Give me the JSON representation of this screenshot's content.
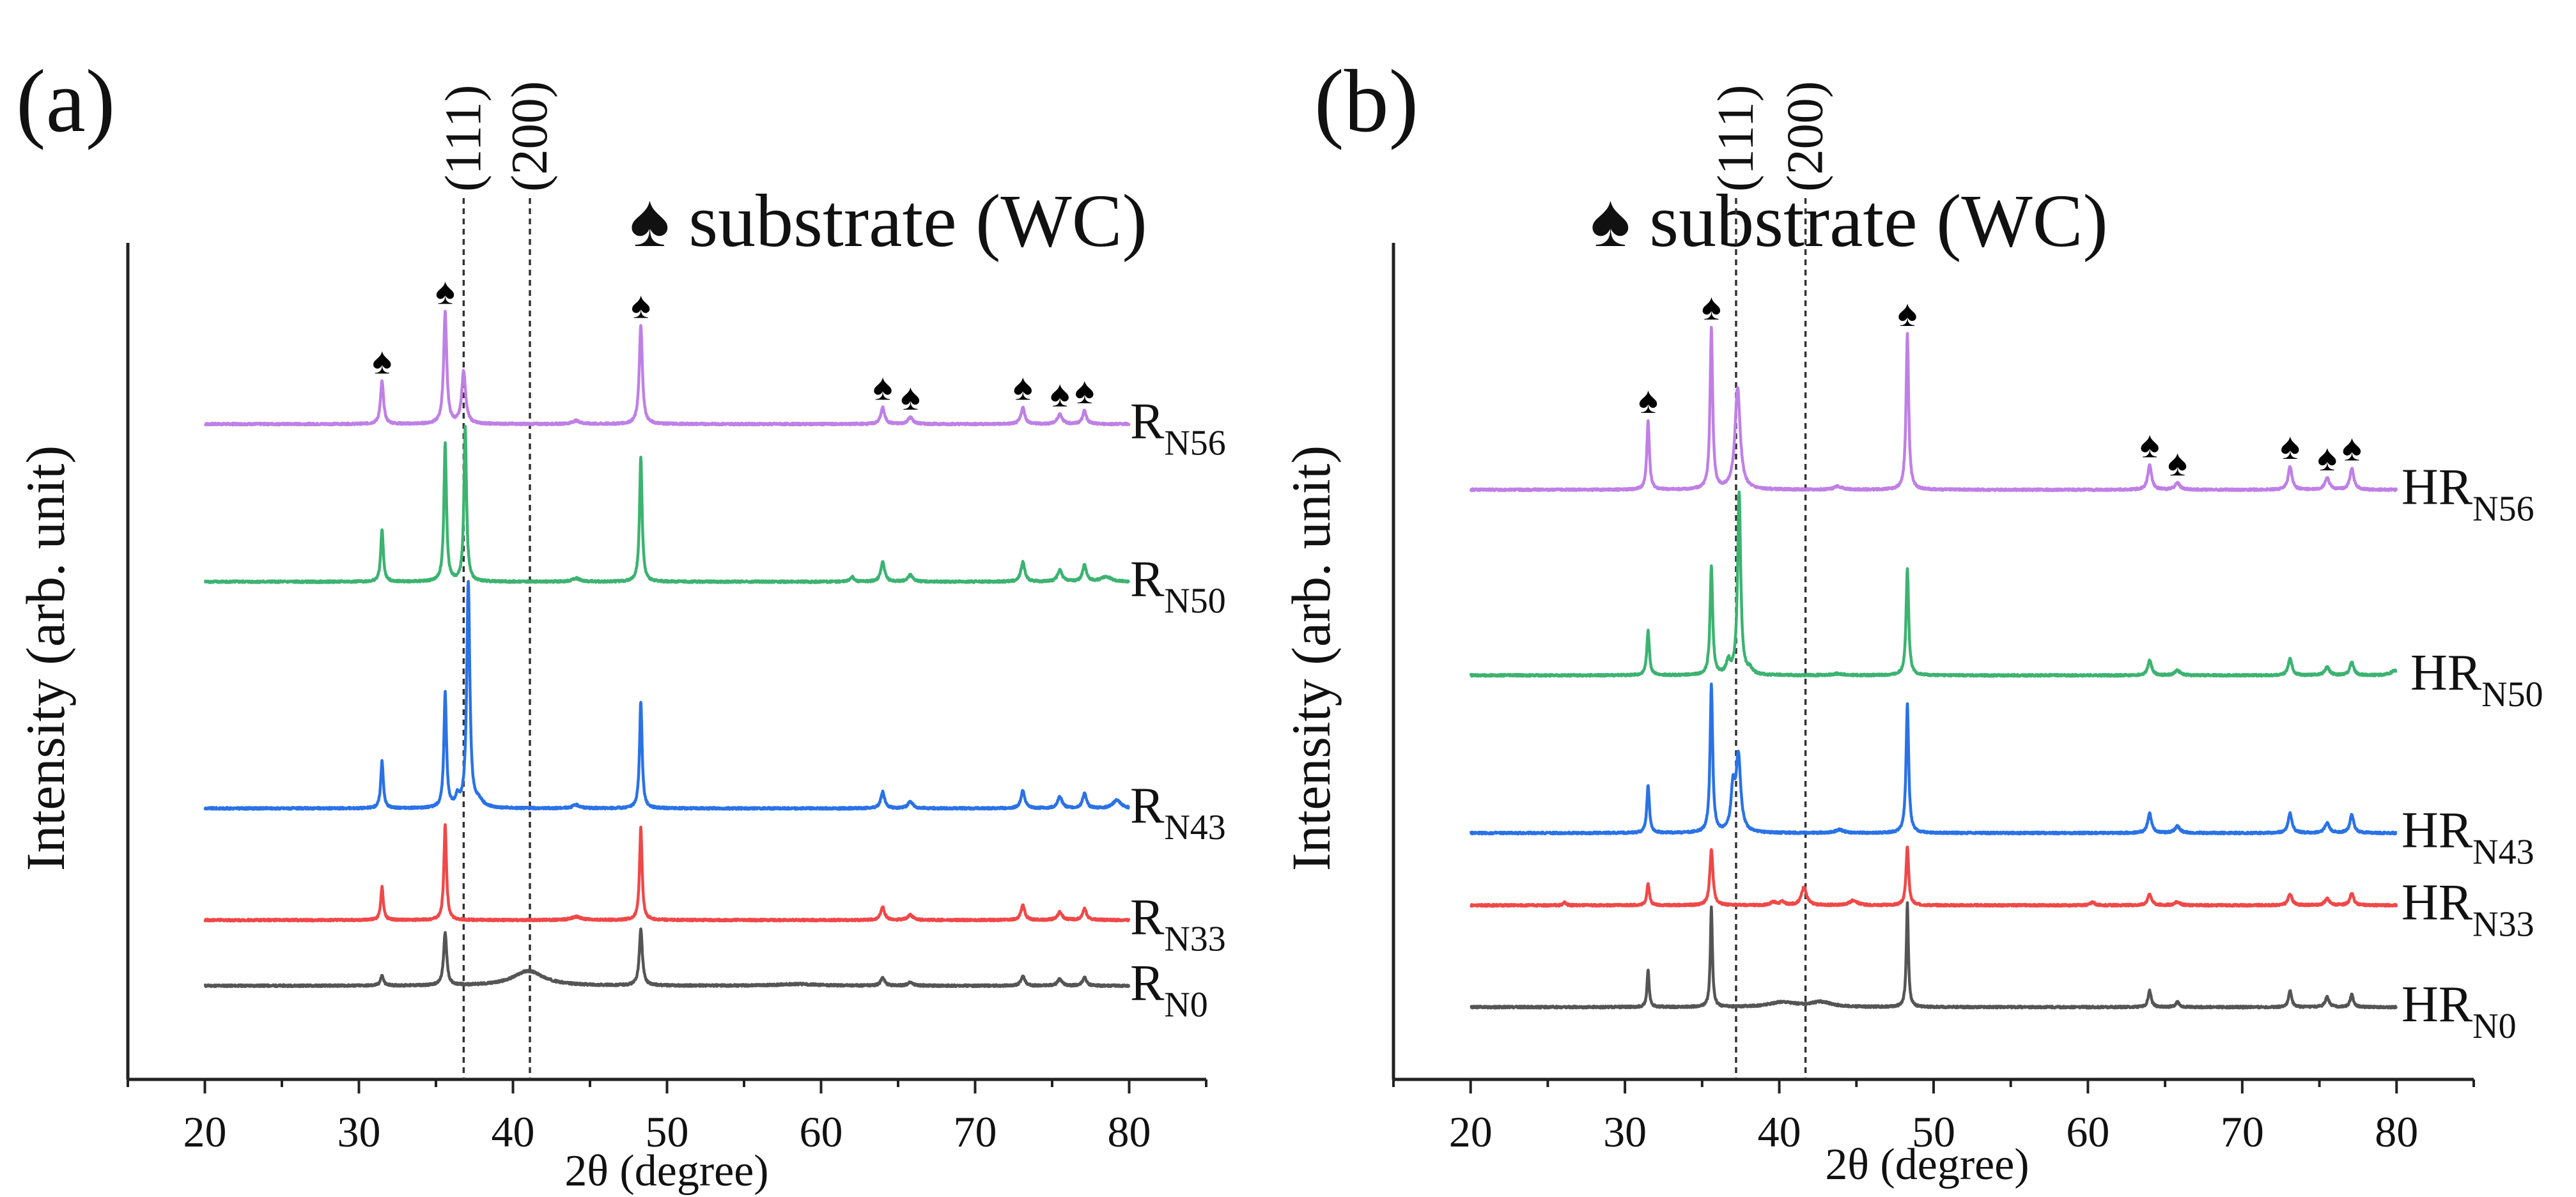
{
  "chart_data": [
    {
      "type": "line",
      "panel_label": "(a)",
      "legend": {
        "symbol": "♠",
        "text": "substrate (WC)"
      },
      "xlabel": "2θ (degree)",
      "ylabel": "Intensity (arb. unit)",
      "xlim": [
        15,
        85
      ],
      "xticks": [
        20,
        30,
        40,
        50,
        60,
        70,
        80
      ],
      "grid": false,
      "reference_lines": [
        {
          "x": 36.8,
          "label": "(111)"
        },
        {
          "x": 41.1,
          "label": "(200)"
        }
      ],
      "substrate_markers": [
        31.5,
        35.6,
        48.3,
        64.0,
        65.8,
        73.1,
        75.5,
        77.1
      ],
      "series": [
        {
          "name": "R",
          "sub": "N56",
          "color": "#bf80e6",
          "offset": 399,
          "peaks": [
            [
              31.5,
              26,
              0.12
            ],
            [
              35.6,
              68,
              0.12
            ],
            [
              36.8,
              32,
              0.15
            ],
            [
              48.3,
              60,
              0.12
            ],
            [
              44.1,
              2,
              0.3
            ],
            [
              64.0,
              10,
              0.15
            ],
            [
              65.8,
              4,
              0.2
            ],
            [
              73.1,
              10,
              0.15
            ],
            [
              75.5,
              6,
              0.18
            ],
            [
              77.1,
              8,
              0.15
            ]
          ]
        },
        {
          "name": "R",
          "sub": "N50",
          "color": "#3cb371",
          "offset": 303,
          "peaks": [
            [
              31.5,
              32,
              0.1
            ],
            [
              35.6,
              84,
              0.1
            ],
            [
              36.9,
              94,
              0.1
            ],
            [
              48.3,
              76,
              0.1
            ],
            [
              44.1,
              2,
              0.3
            ],
            [
              62.0,
              3,
              0.15
            ],
            [
              64.0,
              12,
              0.15
            ],
            [
              65.8,
              4,
              0.2
            ],
            [
              73.1,
              12,
              0.15
            ],
            [
              75.5,
              7,
              0.18
            ],
            [
              77.1,
              10,
              0.15
            ],
            [
              78.5,
              3,
              0.4
            ]
          ]
        },
        {
          "name": "R",
          "sub": "N43",
          "color": "#2a72e6",
          "offset": 165,
          "peaks": [
            [
              31.5,
              29,
              0.1
            ],
            [
              35.6,
              70,
              0.1
            ],
            [
              36.4,
              6,
              0.15
            ],
            [
              37.1,
              137,
              0.12
            ],
            [
              37.8,
              4,
              0.3
            ],
            [
              48.3,
              65,
              0.1
            ],
            [
              44.1,
              2,
              0.3
            ],
            [
              64.0,
              10,
              0.15
            ],
            [
              65.8,
              4,
              0.2
            ],
            [
              73.1,
              11,
              0.15
            ],
            [
              75.5,
              7,
              0.18
            ],
            [
              77.1,
              9,
              0.15
            ],
            [
              79.2,
              5,
              0.3
            ]
          ]
        },
        {
          "name": "R",
          "sub": "N33",
          "color": "#f04848",
          "offset": 97,
          "peaks": [
            [
              31.5,
              20,
              0.1
            ],
            [
              35.6,
              58,
              0.1
            ],
            [
              44.1,
              2,
              0.4
            ],
            [
              48.3,
              56,
              0.1
            ],
            [
              64.0,
              8,
              0.15
            ],
            [
              65.8,
              3,
              0.2
            ],
            [
              73.1,
              9,
              0.15
            ],
            [
              75.5,
              5,
              0.18
            ],
            [
              77.1,
              7,
              0.15
            ]
          ]
        },
        {
          "name": "R",
          "sub": "N0",
          "color": "#555555",
          "offset": 57,
          "peaks": [
            [
              31.5,
              6,
              0.12
            ],
            [
              35.6,
              32,
              0.12
            ],
            [
              41.0,
              9,
              1.2
            ],
            [
              48.3,
              34,
              0.12
            ],
            [
              58.5,
              1,
              1.5
            ],
            [
              64.0,
              5,
              0.15
            ],
            [
              65.8,
              2,
              0.2
            ],
            [
              73.1,
              6,
              0.15
            ],
            [
              75.5,
              4,
              0.18
            ],
            [
              77.1,
              5,
              0.15
            ]
          ]
        }
      ]
    },
    {
      "type": "line",
      "panel_label": "(b)",
      "legend": {
        "symbol": "♠",
        "text": "substrate (WC)"
      },
      "xlabel": "2θ (degree)",
      "ylabel": "Intensity (arb. unit)",
      "xlim": [
        15,
        85
      ],
      "xticks": [
        20,
        30,
        40,
        50,
        60,
        70,
        80
      ],
      "grid": false,
      "reference_lines": [
        {
          "x": 37.2,
          "label": "(111)"
        },
        {
          "x": 41.7,
          "label": "(200)"
        }
      ],
      "substrate_markers": [
        31.5,
        35.6,
        48.3,
        64.0,
        65.8,
        73.1,
        75.5,
        77.1
      ],
      "series": [
        {
          "name": "HR",
          "sub": "N56",
          "color": "#bf80e6",
          "offset": 359,
          "peaks": [
            [
              31.5,
              42,
              0.1
            ],
            [
              35.6,
              98,
              0.1
            ],
            [
              37.3,
              62,
              0.2
            ],
            [
              48.3,
              95,
              0.1
            ],
            [
              43.8,
              2,
              0.3
            ],
            [
              64.0,
              15,
              0.15
            ],
            [
              65.8,
              4,
              0.2
            ],
            [
              73.1,
              14,
              0.15
            ],
            [
              75.5,
              7,
              0.18
            ],
            [
              77.1,
              13,
              0.15
            ]
          ]
        },
        {
          "name": "HR",
          "sub": "N50",
          "color": "#3cb371",
          "offset": 246,
          "peaks": [
            [
              31.5,
              27,
              0.1
            ],
            [
              35.6,
              66,
              0.1
            ],
            [
              36.7,
              8,
              0.15
            ],
            [
              37.4,
              111,
              0.12
            ],
            [
              38.1,
              3,
              0.2
            ],
            [
              48.3,
              65,
              0.1
            ],
            [
              43.8,
              1,
              0.4
            ],
            [
              64.0,
              9,
              0.15
            ],
            [
              65.8,
              3,
              0.2
            ],
            [
              73.1,
              10,
              0.15
            ],
            [
              75.5,
              5,
              0.18
            ],
            [
              77.1,
              8,
              0.15
            ],
            [
              79.9,
              3,
              0.3
            ]
          ]
        },
        {
          "name": "HR",
          "sub": "N43",
          "color": "#2a72e6",
          "offset": 150,
          "peaks": [
            [
              31.5,
              29,
              0.1
            ],
            [
              35.6,
              90,
              0.1
            ],
            [
              37.0,
              25,
              0.15
            ],
            [
              37.35,
              46,
              0.18
            ],
            [
              48.3,
              79,
              0.1
            ],
            [
              43.9,
              2,
              0.3
            ],
            [
              64.0,
              12,
              0.15
            ],
            [
              65.8,
              4,
              0.2
            ],
            [
              73.1,
              12,
              0.15
            ],
            [
              75.5,
              6,
              0.18
            ],
            [
              77.1,
              11,
              0.15
            ]
          ]
        },
        {
          "name": "HR",
          "sub": "N33",
          "color": "#f04848",
          "offset": 106,
          "peaks": [
            [
              26.1,
              2,
              0.1
            ],
            [
              31.5,
              13,
              0.1
            ],
            [
              35.6,
              34,
              0.12
            ],
            [
              39.6,
              2,
              0.2
            ],
            [
              40.2,
              2,
              0.2
            ],
            [
              41.6,
              11,
              0.2
            ],
            [
              44.8,
              3,
              0.3
            ],
            [
              48.3,
              36,
              0.1
            ],
            [
              60.3,
              2,
              0.15
            ],
            [
              64.0,
              7,
              0.15
            ],
            [
              65.8,
              2,
              0.2
            ],
            [
              73.1,
              7,
              0.15
            ],
            [
              75.5,
              4,
              0.18
            ],
            [
              77.1,
              7,
              0.15
            ]
          ]
        },
        {
          "name": "HR",
          "sub": "N0",
          "color": "#555555",
          "offset": 44,
          "peaks": [
            [
              31.5,
              23,
              0.08
            ],
            [
              35.6,
              61,
              0.08
            ],
            [
              40.2,
              3,
              1.0
            ],
            [
              42.7,
              3,
              0.8
            ],
            [
              48.3,
              63,
              0.08
            ],
            [
              64.0,
              10,
              0.12
            ],
            [
              65.8,
              3,
              0.15
            ],
            [
              73.1,
              10,
              0.12
            ],
            [
              75.5,
              6,
              0.15
            ],
            [
              77.1,
              8,
              0.12
            ]
          ]
        }
      ]
    }
  ]
}
